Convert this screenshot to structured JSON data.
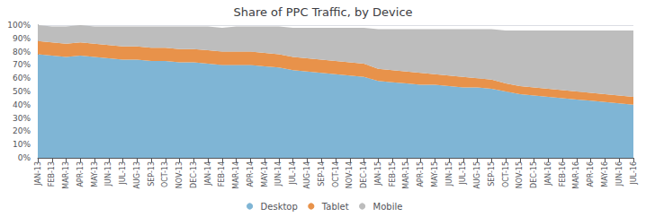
{
  "chart_data": {
    "type": "area",
    "stacked": true,
    "title": "Share of PPC Traffic, by Device",
    "categories": [
      "JAN-13",
      "FEB-13",
      "MAR-13",
      "APR-13",
      "MAY-13",
      "JUN-13",
      "JUL-13",
      "AUG-13",
      "SEP-13",
      "OCT-13",
      "NOV-13",
      "DEC-13",
      "JAN-14",
      "FEB-14",
      "MAR-14",
      "APR-14",
      "MAY-14",
      "JUN-14",
      "JUL-14",
      "AUG-14",
      "SEP-14",
      "OCT-14",
      "NOV-14",
      "DEC-14",
      "JAN-15",
      "FEB-15",
      "MAR-15",
      "APR-15",
      "MAY-15",
      "JUN-15",
      "JUL-15",
      "AUG-15",
      "SEP-15",
      "OCT-15",
      "NOV-15",
      "DEC-15",
      "JAN-16",
      "FEB-16",
      "MAR-16",
      "APR-16",
      "MAY-16",
      "JUN-16",
      "JUL-16"
    ],
    "series": [
      {
        "name": "Desktop",
        "color": "#7FB5D5",
        "values": [
          78,
          77,
          76,
          77,
          76,
          75,
          74,
          74,
          73,
          73,
          72,
          72,
          71,
          70,
          70,
          70,
          69,
          68,
          66,
          65,
          64,
          63,
          62,
          61,
          58,
          57,
          56,
          55,
          55,
          54,
          53,
          53,
          52,
          50,
          48,
          47,
          46,
          45,
          44,
          43,
          42,
          41,
          40
        ]
      },
      {
        "name": "Tablet",
        "color": "#E8924A",
        "values": [
          10,
          10,
          10,
          10,
          10,
          10,
          10,
          10,
          10,
          10,
          10,
          10,
          10,
          10,
          10,
          10,
          10,
          10,
          10,
          10,
          10,
          10,
          10,
          10,
          9,
          9,
          9,
          9,
          8,
          8,
          8,
          7,
          7,
          6,
          6,
          6,
          6,
          6,
          6,
          6,
          6,
          6,
          6
        ]
      },
      {
        "name": "Mobile",
        "color": "#BDBDBD",
        "values": [
          12,
          12,
          13,
          13,
          13,
          14,
          15,
          15,
          16,
          16,
          17,
          17,
          18,
          18,
          19,
          19,
          20,
          21,
          22,
          23,
          24,
          25,
          26,
          27,
          30,
          31,
          32,
          33,
          34,
          35,
          36,
          37,
          38,
          40,
          42,
          43,
          44,
          45,
          46,
          47,
          48,
          49,
          50
        ]
      }
    ],
    "ylim": [
      0,
      100
    ],
    "yticks": [
      {
        "value": 0,
        "label": "0%"
      },
      {
        "value": 10,
        "label": "10%"
      },
      {
        "value": 20,
        "label": "20%"
      },
      {
        "value": 30,
        "label": "30%"
      },
      {
        "value": 40,
        "label": "40%"
      },
      {
        "value": 50,
        "label": "50%"
      },
      {
        "value": 60,
        "label": "60%"
      },
      {
        "value": 70,
        "label": "70%"
      },
      {
        "value": 80,
        "label": "80%"
      },
      {
        "value": 90,
        "label": "90%"
      },
      {
        "value": 100,
        "label": "100%"
      }
    ],
    "grid": true,
    "legend": "bottom"
  }
}
